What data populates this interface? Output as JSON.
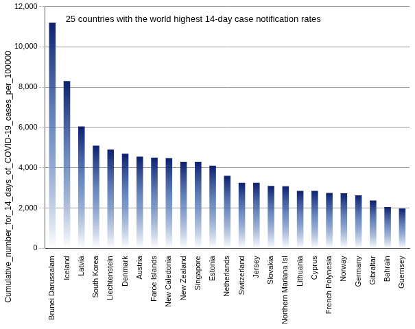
{
  "chart_data": {
    "type": "bar",
    "title": "25 countries with the world highest 14-day case notification rates",
    "y_label": "Cumulative_number_for_14_days_of_COVID-19_cases_per_100000",
    "categories": [
      "Brunei Darussalam",
      "Iceland",
      "Latvia",
      "South Korea",
      "Liechtenstein",
      "Denmark",
      "Austria",
      "Faroe Islands",
      "New Caledonia",
      "New Zealand",
      "Singapore",
      "Estonia",
      "Netherlands",
      "Switzerland",
      "Jersey",
      "Slovakia",
      "Northern Mariana Isl",
      "Lithuania",
      "Cyprus",
      "French Polynesia",
      "Norway",
      "Germany",
      "Gibraltar",
      "Bahrain",
      "Guernsey"
    ],
    "values": [
      11200,
      8300,
      6050,
      5100,
      4900,
      4700,
      4550,
      4500,
      4480,
      4300,
      4300,
      4100,
      3600,
      3250,
      3250,
      3100,
      3080,
      2850,
      2850,
      2750,
      2730,
      2630,
      2380,
      2050,
      1980
    ],
    "color": "#0d1f6e",
    "ylim": [
      0,
      12000
    ],
    "yticks": [
      0,
      {
        "value": 2000,
        "label": "2,000"
      },
      {
        "value": 4000,
        "label": "4,000"
      },
      {
        "value": 6000,
        "label": "6,000"
      },
      {
        "value": 8000,
        "label": "8,000"
      },
      {
        "value": 10000,
        "label": "10,000"
      },
      {
        "value": 12000,
        "label": "12,000"
      }
    ],
    "grid": true
  }
}
